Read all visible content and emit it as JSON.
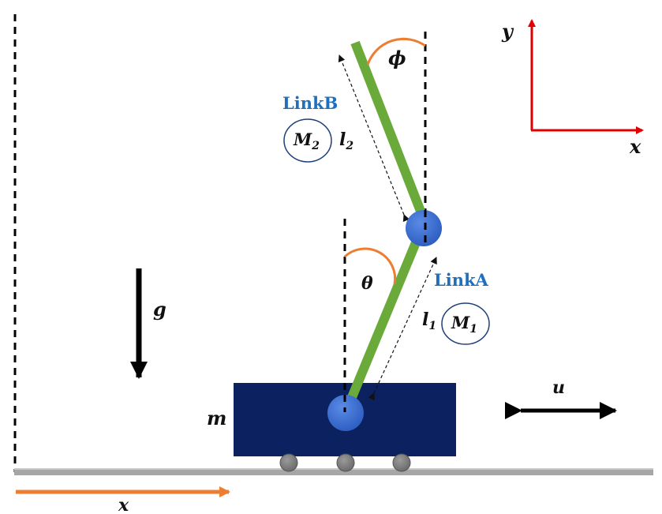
{
  "links": {
    "link_b": {
      "name": "LinkB",
      "mass": "M",
      "mass_sub": "2",
      "length": "l",
      "length_sub": "2",
      "angle": "ϕ"
    },
    "link_a": {
      "name": "LinkA",
      "mass": "M",
      "mass_sub": "1",
      "length": "l",
      "length_sub": "1",
      "angle": "θ"
    }
  },
  "cart": {
    "mass": "m"
  },
  "gravity": "g",
  "force": "u",
  "position": "x",
  "axes": {
    "x": "x",
    "y": "y"
  },
  "colors": {
    "rod": "#6aaa3a",
    "joint": "#3a6fd0",
    "cart": "#0b2160",
    "angle_arc": "#ed7d31",
    "axis": "#e00000",
    "position_arrow": "#ed7d31",
    "ground": "#a6a6a6",
    "label": "#1f6fbf"
  }
}
